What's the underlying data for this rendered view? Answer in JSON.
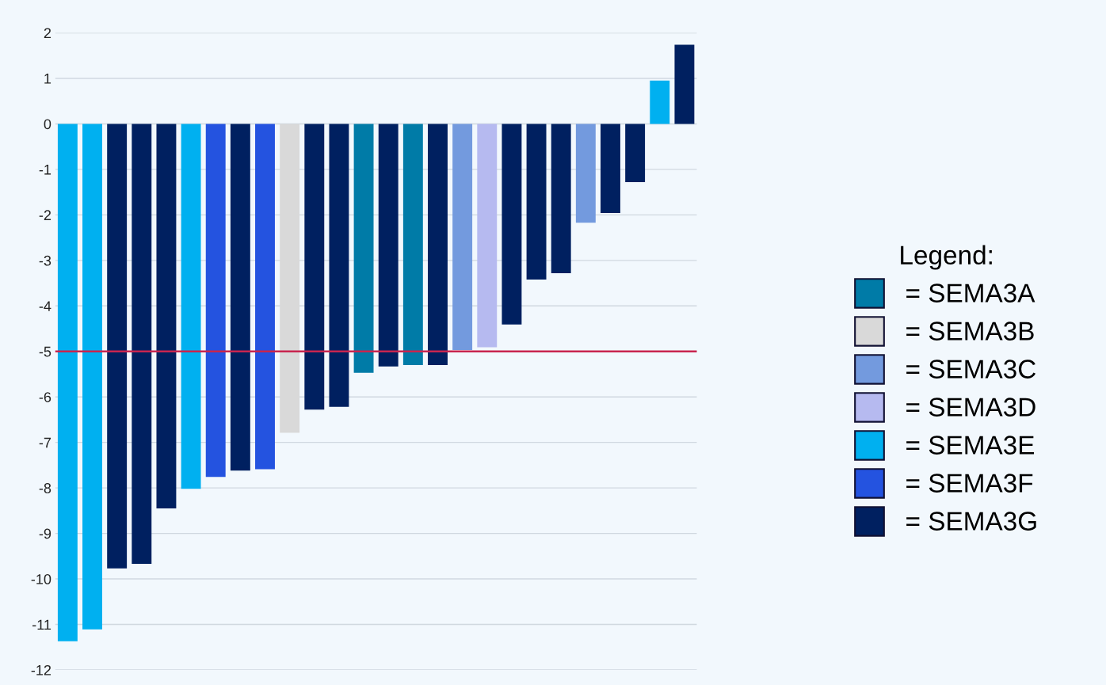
{
  "chart_data": {
    "type": "bar",
    "categories": [
      null,
      null,
      null,
      null,
      null,
      null,
      null,
      null,
      null,
      null,
      null,
      null,
      null,
      null,
      null,
      null,
      null,
      null,
      null,
      null,
      null,
      null,
      null,
      null,
      null,
      null
    ],
    "series": [
      {
        "name": "= SEMA3A",
        "color": "#007ba7",
        "values": [
          null,
          null,
          null,
          null,
          null,
          null,
          null,
          null,
          null,
          null,
          null,
          null,
          -5.47,
          null,
          -5.3,
          null,
          null,
          null,
          null,
          null,
          null,
          null,
          null,
          null,
          null,
          null
        ]
      },
      {
        "name": "= SEMA3B",
        "color": "#d9d9d9",
        "values": [
          null,
          null,
          null,
          null,
          null,
          null,
          null,
          null,
          null,
          -6.79,
          null,
          null,
          null,
          null,
          null,
          null,
          null,
          null,
          null,
          null,
          null,
          null,
          null,
          null,
          null,
          null
        ]
      },
      {
        "name": "= SEMA3C",
        "color": "#739ade",
        "values": [
          null,
          null,
          null,
          null,
          null,
          null,
          null,
          null,
          null,
          null,
          null,
          null,
          null,
          null,
          null,
          null,
          -4.97,
          null,
          null,
          null,
          null,
          -2.17,
          null,
          null,
          null,
          null
        ]
      },
      {
        "name": "= SEMA3D",
        "color": "#b6baf0",
        "values": [
          null,
          null,
          null,
          null,
          null,
          null,
          null,
          null,
          null,
          null,
          null,
          null,
          null,
          null,
          null,
          null,
          null,
          -4.91,
          null,
          null,
          null,
          null,
          null,
          null,
          null,
          null
        ]
      },
      {
        "name": "= SEMA3E",
        "color": "#00b0f0",
        "values": [
          -11.37,
          -11.11,
          null,
          null,
          null,
          -8.02,
          null,
          null,
          null,
          null,
          null,
          null,
          null,
          null,
          null,
          null,
          null,
          null,
          null,
          null,
          null,
          null,
          null,
          null,
          0.95,
          null
        ]
      },
      {
        "name": "= SEMA3F",
        "color": "#2453e0",
        "values": [
          null,
          null,
          null,
          null,
          null,
          null,
          -7.76,
          null,
          -7.59,
          null,
          null,
          null,
          null,
          null,
          null,
          null,
          null,
          null,
          null,
          null,
          null,
          null,
          null,
          null,
          null,
          null
        ]
      },
      {
        "name": "= SEMA3G",
        "color": "#002060",
        "values": [
          null,
          null,
          -9.77,
          -9.67,
          -8.45,
          null,
          null,
          -7.62,
          null,
          null,
          -6.28,
          -6.22,
          null,
          -5.33,
          null,
          -5.3,
          null,
          null,
          -4.41,
          -3.42,
          -3.28,
          null,
          -1.96,
          -1.28,
          null,
          1.74
        ]
      }
    ],
    "ylim": [
      -12,
      2
    ],
    "yticks": [
      -12,
      -11,
      -10,
      -9,
      -8,
      -7,
      -6,
      -5,
      -4,
      -3,
      -2,
      -1,
      0,
      1,
      2
    ],
    "grid": "y",
    "legend": "right",
    "legend_title": "Legend:",
    "ref_lines": [
      {
        "axis": "y",
        "value": -5,
        "color": "#c8254f"
      }
    ]
  }
}
